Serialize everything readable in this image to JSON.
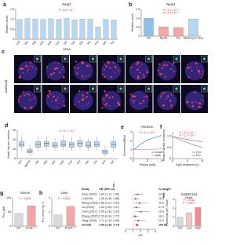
{
  "chart_data": [
    {
      "panel": "a",
      "type": "bar",
      "title": "Neat1",
      "ylabel": "Relative count",
      "xlabel": "NEAA",
      "categories": [
        "Ctrl",
        "Ala",
        "Arg",
        "Asn",
        "Asp",
        "Cys",
        "Gln",
        "Glu",
        "Gly",
        "His",
        "Pro",
        "Ser",
        "Tyr"
      ],
      "values": [
        1,
        1.04,
        1.02,
        0.99,
        1.03,
        1,
        1.05,
        0.98,
        1.02,
        1.01,
        0.62,
        1,
        0.97
      ],
      "color": "#b7d7f0",
      "ylim": [
        0,
        1.5
      ],
      "yticks": [
        0,
        0.5,
        {
          "value": 1,
          "label": "1.0"
        },
        1.5
      ],
      "annotations": [
        "P = 3.6 × 10⁻⁴"
      ]
    },
    {
      "panel": "b",
      "type": "bar",
      "title": "Neat1",
      "ylabel": "Relative count",
      "categories": [
        "Ctrl",
        "NEAA",
        "Pro",
        "NEAA (pro free)"
      ],
      "values": [
        1,
        0.52,
        0.48,
        0.96
      ],
      "colors": [
        "#8fc1e8",
        "#f4a6a6",
        "#f4a6a6",
        "#b7d7f0"
      ],
      "ylim": [
        0,
        1.5
      ],
      "yticks": [
        0,
        0.5,
        {
          "value": 1,
          "label": "1.0"
        },
        1.5
      ],
      "annotations": [
        "P = 1.2 × 10⁻³",
        "P = 8.4 × 10⁻⁴"
      ]
    },
    {
      "panel": "d",
      "type": "box",
      "ylabel": "Neat1 foci per nucleus",
      "categories": [
        "Ctrl",
        "NEAA",
        "Ala",
        "Arg",
        "Asn",
        "Asp",
        "Cys",
        "Gln",
        "Glu",
        "Gly",
        "Pro",
        "Ser"
      ],
      "boxes": [
        {
          "min": 8,
          "q1": 13,
          "median": 15,
          "q3": 18,
          "max": 24
        },
        {
          "min": 3,
          "q1": 6,
          "median": 8,
          "q3": 10,
          "max": 15
        },
        {
          "min": 8,
          "q1": 12,
          "median": 15,
          "q3": 18,
          "max": 23
        },
        {
          "min": 9,
          "q1": 13,
          "median": 16,
          "q3": 18,
          "max": 24
        },
        {
          "min": 8,
          "q1": 12,
          "median": 14,
          "q3": 17,
          "max": 22
        },
        {
          "min": 9,
          "q1": 13,
          "median": 15,
          "q3": 19,
          "max": 25
        },
        {
          "min": 8,
          "q1": 12,
          "median": 15,
          "q3": 17,
          "max": 23
        },
        {
          "min": 9,
          "q1": 13,
          "median": 16,
          "q3": 19,
          "max": 24
        },
        {
          "min": 8,
          "q1": 12,
          "median": 14,
          "q3": 18,
          "max": 22
        },
        {
          "min": 9,
          "q1": 13,
          "median": 15,
          "q3": 18,
          "max": 23
        },
        {
          "min": 2,
          "q1": 5,
          "median": 7,
          "q3": 9,
          "max": 14
        },
        {
          "min": 8,
          "q1": 12,
          "median": 15,
          "q3": 18,
          "max": 24
        }
      ],
      "color": "#b7d7f0",
      "ylim": [
        0,
        30
      ],
      "yticks": [
        0,
        10,
        20,
        30
      ],
      "annotations": [
        "P = 2.7 × 10⁻⁵"
      ]
    },
    {
      "panel": "e",
      "type": "line",
      "title": "HGSOC",
      "ylabel": "Enrichment/RNA",
      "xlabel": "Proline (mM)",
      "x": [
        0,
        1,
        2,
        4
      ],
      "series": [
        {
          "name": "Neat1",
          "color": "#3b7dd8",
          "values": [
            1,
            1.6,
            2.1,
            2.6
          ]
        },
        {
          "name": "Actb",
          "color": "#f08c8c",
          "values": [
            1,
            1.05,
            1,
            1.1
          ]
        }
      ],
      "xlim": [
        0,
        4
      ],
      "xticks": [
        0,
        2,
        4
      ],
      "ylim": [
        0,
        3
      ],
      "yticks": [
        0,
        1,
        2,
        3
      ],
      "annotations": [
        "P = 4.1 × 10⁻³"
      ]
    },
    {
      "panel": "f",
      "type": "line",
      "ylabel": "Relative Neat1 remaining",
      "xlabel": "ActD treatment (h)",
      "x": [
        0,
        2,
        4,
        6,
        8
      ],
      "series": [
        {
          "name": "Ctrl",
          "color": "#888888",
          "values": [
            1,
            0.85,
            0.72,
            0.6,
            0.5
          ]
        },
        {
          "name": "Pro",
          "color": "#e05a5a",
          "values": [
            1,
            0.92,
            0.86,
            0.8,
            0.76
          ]
        }
      ],
      "xlim": [
        0,
        8
      ],
      "xticks": [
        0,
        4,
        8
      ],
      "ylim": [
        0,
        1.2
      ],
      "yticks": [
        0,
        0.5,
        {
          "value": 1,
          "label": "1.0"
        }
      ],
      "annotations": [
        "P = 2.0 × 10⁻⁴",
        "P = 1.1 × 10⁻³"
      ]
    },
    {
      "panel": "g",
      "type": "bar",
      "title": "Serum",
      "ylabel": "Pro (μM)",
      "categories": [
        "WT",
        "Prodh⁻/⁻"
      ],
      "values": [
        45,
        72
      ],
      "colors": [
        "#d9d9d9",
        "#f4a6a6"
      ],
      "ylim": [
        0,
        100
      ],
      "yticks": [
        0,
        50,
        100
      ],
      "annotations": [
        "P = 0.0041"
      ]
    },
    {
      "panel": "h",
      "type": "bar",
      "title": "Liver",
      "ylabel": "Pro (nmol mg⁻¹)",
      "categories": [
        "WT",
        "Prodh⁻/⁻"
      ],
      "values": [
        0.8,
        1.4
      ],
      "colors": [
        "#d9d9d9",
        "#f4a6a6"
      ],
      "ylim": [
        0,
        2
      ],
      "yticks": [
        0,
        1,
        2
      ],
      "annotations": [
        "P = 0.0012"
      ]
    },
    {
      "panel": "i",
      "type": "forest",
      "xlabel": "OR",
      "columns": [
        "Study",
        "OR (95% CI)",
        "% weight"
      ],
      "rows": [
        {
          "study": "Zhou (2020)",
          "ci": "1.62 (1.12, 2.35)",
          "weight": "14.2",
          "or": 1.62,
          "lo": 1.12,
          "hi": 2.35
        },
        {
          "study": "Li (2019)",
          "ci": "1.35 (0.98, 1.86)",
          "weight": "16.8",
          "or": 1.35,
          "lo": 0.98,
          "hi": 1.86
        },
        {
          "study": "Wang (2018)",
          "ci": "1.88 (1.21, 2.92)",
          "weight": "11.5",
          "or": 1.88,
          "lo": 1.21,
          "hi": 2.92
        },
        {
          "study": "Liu (2021)",
          "ci": "1.44 (1.05, 1.97)",
          "weight": "17.3",
          "or": 1.44,
          "lo": 1.05,
          "hi": 1.97
        },
        {
          "study": "Chen (2017)",
          "ci": "2.05 (1.30, 3.23)",
          "weight": "10.6",
          "or": 2.05,
          "lo": 1.3,
          "hi": 3.23
        },
        {
          "study": "Zhang (2022)",
          "ci": "1.29 (0.94, 1.77)",
          "weight": "18.1",
          "or": 1.29,
          "lo": 0.94,
          "hi": 1.77
        },
        {
          "study": "Yang (2016)",
          "ci": "1.71 (1.10, 2.66)",
          "weight": "11.5",
          "or": 1.71,
          "lo": 1.1,
          "hi": 2.66
        },
        {
          "study": "Overall",
          "ci": "1.54 (1.34, 1.77)",
          "weight": "100.00",
          "or": 1.54,
          "lo": 1.34,
          "hi": 1.77
        }
      ],
      "ref": 1,
      "xlim": [
        0,
        4
      ],
      "xticks": [
        0,
        1,
        2,
        3,
        4
      ],
      "color": "#d62728"
    },
    {
      "panel": "j",
      "type": "bar",
      "title": "GSE57344",
      "subtitle": "Neat1",
      "ylabel": "Transcripts per million",
      "categories": [
        "Ctrl",
        "Low",
        "High"
      ],
      "values": [
        1,
        1.5,
        2.1
      ],
      "colors": [
        "#d9d9d9",
        "#f8c4c4",
        "#f08c8c"
      ],
      "ylim": [
        0,
        3
      ],
      "yticks": [
        0,
        1,
        2,
        3
      ],
      "annotations": [
        "P = 0.018",
        "P = 0.0021"
      ]
    }
  ],
  "image_panel": {
    "panel": "c",
    "stains": [
      "Neat1",
      "DAPI"
    ],
    "rows": [
      [
        "Ctrl",
        "NEAA",
        "Asp",
        "Glu",
        "Pro",
        "Gly",
        "Tyr"
      ],
      [
        "Asn",
        "Cys",
        "Ser",
        "Ala",
        "Gln",
        "His",
        "Pro"
      ]
    ]
  }
}
